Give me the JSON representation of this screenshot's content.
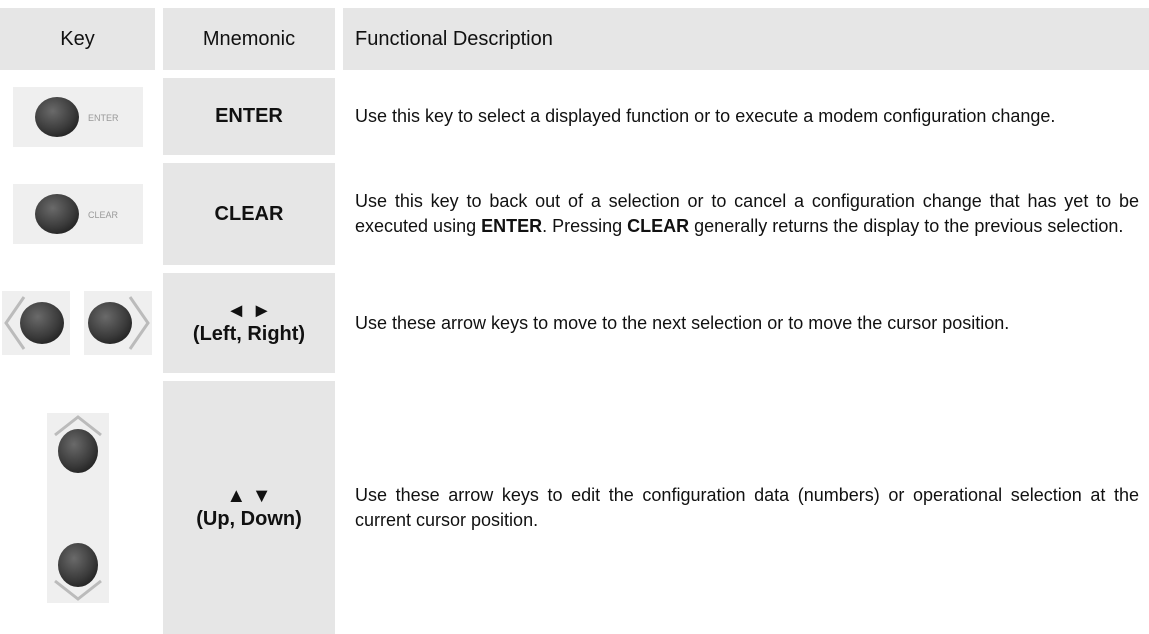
{
  "header": {
    "key": "Key",
    "mnemonic": "Mnemonic",
    "description": "Functional Description"
  },
  "rows": [
    {
      "key_label": "ENTER",
      "mnemonic": [
        "ENTER"
      ],
      "description": [
        "Use this key to select a displayed function or to execute a modem configuration change."
      ]
    },
    {
      "key_label": "CLEAR",
      "mnemonic": [
        "CLEAR"
      ],
      "description": [
        "Use this key to back out of a selection or to cancel a configuration change that has yet to be executed using ",
        "ENTER",
        ". Pressing ",
        "CLEAR",
        " generally returns the display to the previous selection."
      ]
    },
    {
      "mnemonic": [
        "◄ ►",
        "(Left, Right)"
      ],
      "description": [
        "Use these arrow keys to move to the next selection or to move the cursor position."
      ]
    },
    {
      "mnemonic": [
        "▲ ▼",
        "(Up, Down)"
      ],
      "description": [
        "Use these arrow keys to edit the configuration data (numbers) or operational selection at the current cursor position."
      ]
    }
  ]
}
